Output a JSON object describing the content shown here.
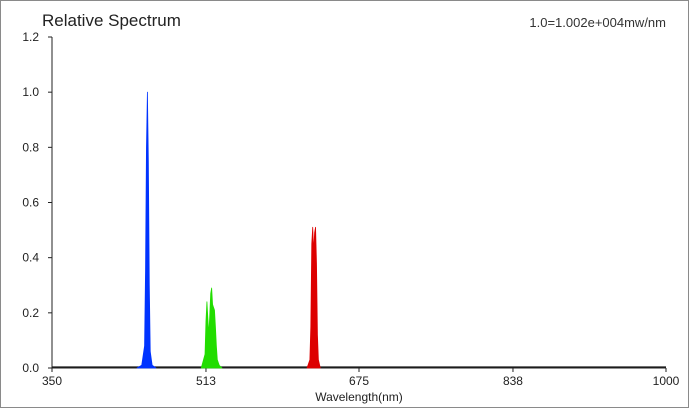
{
  "chart_data": {
    "type": "line",
    "title": "Relative Spectrum",
    "annotation": "1.0=1.002e+004mw/nm",
    "xlabel": "Wavelength(nm)",
    "ylabel": "",
    "xlim": [
      350,
      1000
    ],
    "ylim": [
      0,
      1.2
    ],
    "x_ticks": [
      "350",
      "513",
      "675",
      "838",
      "1000"
    ],
    "x_tick_values": [
      350,
      513,
      675,
      838,
      1000
    ],
    "y_ticks": [
      "0.0",
      "0.2",
      "0.4",
      "0.6",
      "0.8",
      "1.0",
      "1.2"
    ],
    "y_tick_values": [
      0,
      0.2,
      0.4,
      0.6,
      0.8,
      1.0,
      1.2
    ],
    "grid": false,
    "legend": "none",
    "series": [
      {
        "color": "#0033ff",
        "x": [
          440,
          445,
          448,
          449,
          450,
          451,
          452,
          453,
          454,
          456,
          460
        ],
        "y": [
          0.0,
          0.01,
          0.08,
          0.35,
          0.8,
          1.0,
          0.75,
          0.3,
          0.06,
          0.01,
          0.0
        ]
      },
      {
        "color": "#22dd00",
        "x": [
          508,
          512,
          513,
          514,
          515,
          516,
          517,
          518,
          519,
          520,
          521,
          522,
          523,
          524,
          525,
          527,
          530
        ],
        "y": [
          0.0,
          0.05,
          0.17,
          0.24,
          0.18,
          0.12,
          0.19,
          0.27,
          0.29,
          0.23,
          0.22,
          0.21,
          0.15,
          0.08,
          0.03,
          0.01,
          0.0
        ]
      },
      {
        "color": "#dd0000",
        "x": [
          620,
          623,
          624,
          625,
          626,
          627,
          628,
          629,
          630,
          631,
          632,
          634
        ],
        "y": [
          0.0,
          0.03,
          0.15,
          0.45,
          0.51,
          0.42,
          0.49,
          0.51,
          0.38,
          0.12,
          0.03,
          0.0
        ]
      }
    ]
  }
}
